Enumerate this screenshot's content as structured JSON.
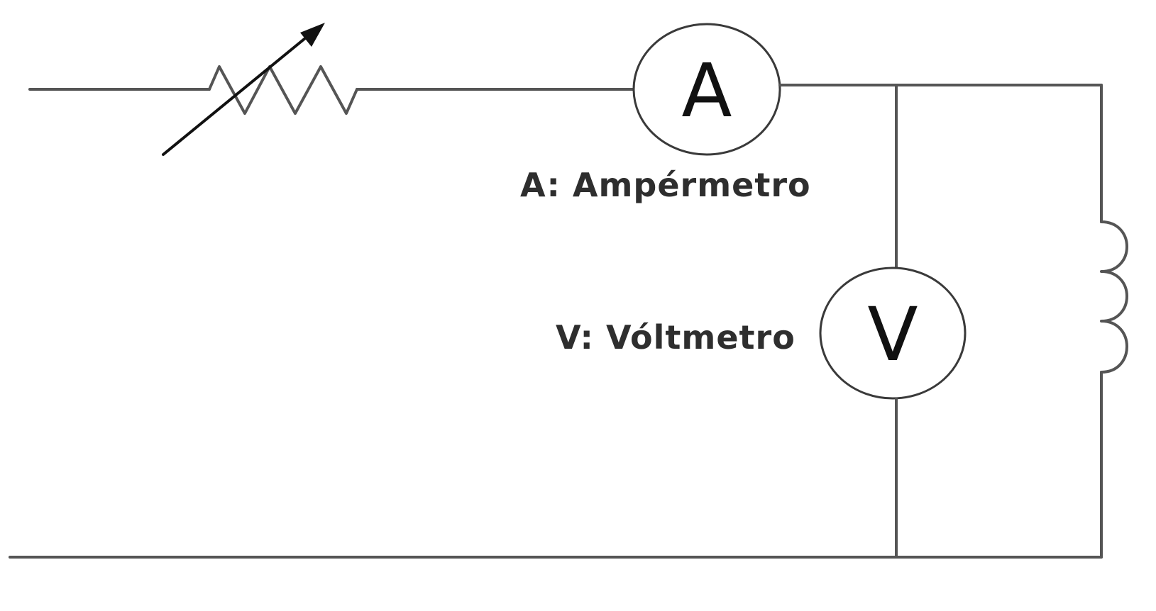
{
  "diagram": {
    "ammeter": {
      "symbol": "A",
      "label": "A: Ampérmetro"
    },
    "voltmeter": {
      "symbol": "V",
      "label": "V: Vóltmetro"
    },
    "components": {
      "rheostat_icon": "variable-resistor-icon",
      "inductor_icon": "inductor-coil-icon"
    },
    "colors": {
      "wire": "#555555",
      "meter_outline": "#3a3a3a",
      "text": "#2e2e2e",
      "background": "#ffffff"
    }
  }
}
